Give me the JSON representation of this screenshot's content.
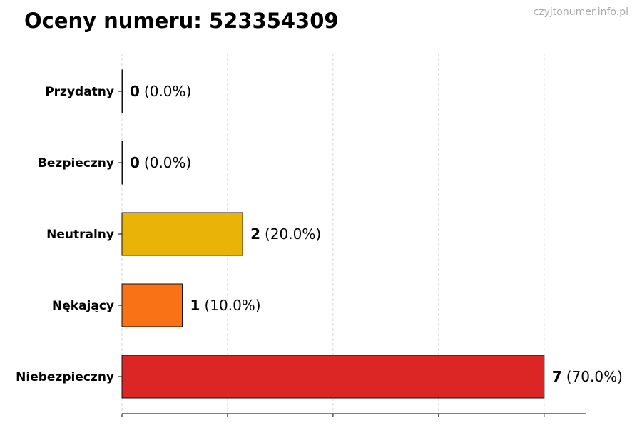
{
  "title": "Oceny numeru: 523354309",
  "watermark": "czyjtonumer.info.pl",
  "chart_data": {
    "type": "bar",
    "orientation": "horizontal",
    "categories": [
      "Przydatny",
      "Bezpieczny",
      "Neutralny",
      "Nękający",
      "Niebezpieczny"
    ],
    "values": [
      0,
      0,
      2,
      1,
      7
    ],
    "percent_labels": [
      "(0.0%)",
      "(0.0%)",
      "(20.0%)",
      "(10.0%)",
      "(70.0%)"
    ],
    "colors": [
      "#4caf50",
      "#2196f3",
      "#eab308",
      "#f97316",
      "#dc2626"
    ],
    "xlim": [
      0,
      7.7
    ],
    "x_gridlines": [
      0,
      1.75,
      3.5,
      5.25,
      7
    ],
    "grid": "vertical dashed",
    "legend": "none"
  }
}
